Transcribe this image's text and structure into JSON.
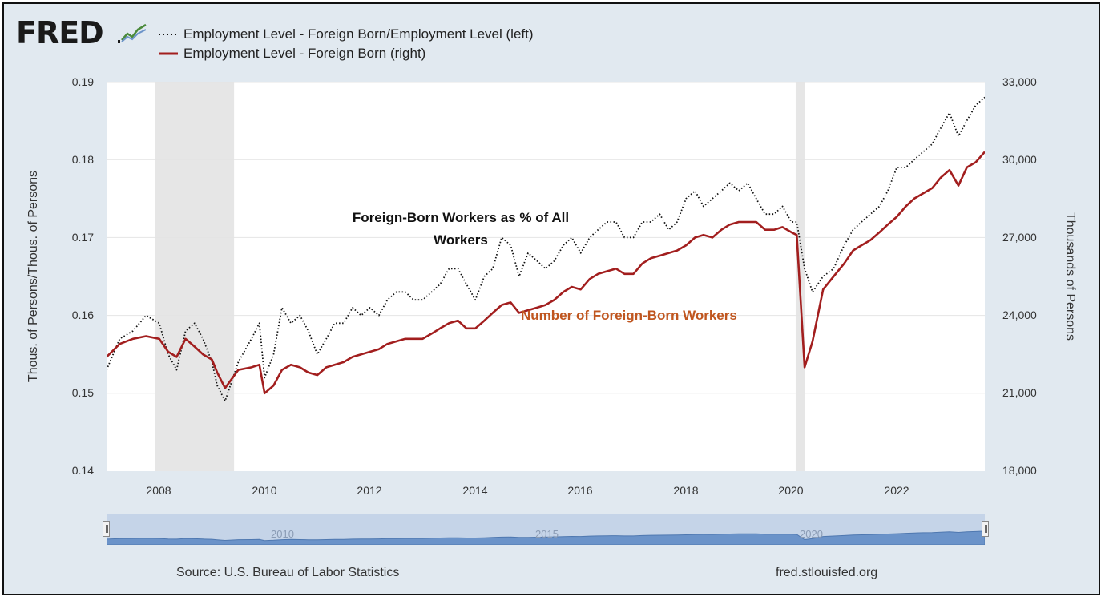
{
  "header": {
    "logo_text": "FRED",
    "legend": [
      {
        "label": "Employment Level - Foreign Born/Employment Level (left)",
        "style": "dotted",
        "color": "#111111"
      },
      {
        "label": "Employment Level - Foreign Born (right)",
        "style": "solid",
        "color": "#a21e1e"
      }
    ]
  },
  "annotations": {
    "ratio_series": "Foreign-Born Workers as % of All Workers",
    "count_series": "Number of Foreign-Born Workers"
  },
  "footer": {
    "source": "Source: U.S. Bureau of Labor Statistics",
    "site": "fred.stlouisfed.org"
  },
  "navigator": {
    "labels": [
      "2010",
      "2015",
      "2020"
    ]
  },
  "colors": {
    "background": "#e1e9f0",
    "plot_background": "#ffffff",
    "recession_shade": "#e6e6e6",
    "ratio_series": "#111111",
    "count_series": "#a21e1e",
    "count_annotation": "#c0561f",
    "navigator_fill": "#6b93c9"
  },
  "chart_data": {
    "type": "line",
    "xlabel": "",
    "ylabel_left": "Thous. of Persons/Thous. of Persons",
    "ylabel_right": "Thousands of Persons",
    "x_range": [
      2007.0,
      2023.67
    ],
    "ylim_left": [
      0.14,
      0.19
    ],
    "ylim_right": [
      18000,
      33000
    ],
    "x_ticks": [
      2008,
      2010,
      2012,
      2014,
      2016,
      2018,
      2020,
      2022
    ],
    "y_ticks_left": [
      "0.14",
      "0.15",
      "0.16",
      "0.17",
      "0.18",
      "0.19"
    ],
    "y_ticks_right": [
      "18,000",
      "21,000",
      "24,000",
      "27,000",
      "30,000",
      "33,000"
    ],
    "grid": true,
    "recessions": [
      [
        2007.92,
        2009.42
      ],
      [
        2020.08,
        2020.25
      ]
    ],
    "series": [
      {
        "name": "Employment Level - Foreign Born/Employment Level (left)",
        "axis": "left",
        "x": [
          2007.0,
          2007.25,
          2007.5,
          2007.75,
          2008.0,
          2008.17,
          2008.33,
          2008.5,
          2008.67,
          2008.83,
          2009.0,
          2009.1,
          2009.25,
          2009.5,
          2009.75,
          2009.9,
          2010.0,
          2010.17,
          2010.33,
          2010.5,
          2010.67,
          2010.83,
          2011.0,
          2011.17,
          2011.33,
          2011.5,
          2011.67,
          2011.83,
          2012.0,
          2012.17,
          2012.33,
          2012.5,
          2012.67,
          2012.83,
          2013.0,
          2013.17,
          2013.33,
          2013.5,
          2013.67,
          2013.83,
          2014.0,
          2014.17,
          2014.33,
          2014.5,
          2014.67,
          2014.83,
          2015.0,
          2015.17,
          2015.33,
          2015.5,
          2015.67,
          2015.83,
          2016.0,
          2016.17,
          2016.33,
          2016.5,
          2016.67,
          2016.83,
          2017.0,
          2017.17,
          2017.33,
          2017.5,
          2017.67,
          2017.83,
          2018.0,
          2018.17,
          2018.33,
          2018.5,
          2018.67,
          2018.83,
          2019.0,
          2019.17,
          2019.33,
          2019.5,
          2019.67,
          2019.83,
          2020.0,
          2020.1,
          2020.25,
          2020.4,
          2020.6,
          2020.8,
          2021.0,
          2021.17,
          2021.33,
          2021.5,
          2021.67,
          2021.83,
          2022.0,
          2022.17,
          2022.33,
          2022.5,
          2022.67,
          2022.83,
          2023.0,
          2023.17,
          2023.33,
          2023.5,
          2023.67
        ],
        "values": [
          0.153,
          0.157,
          0.158,
          0.16,
          0.159,
          0.155,
          0.153,
          0.158,
          0.159,
          0.157,
          0.154,
          0.151,
          0.149,
          0.154,
          0.157,
          0.159,
          0.152,
          0.155,
          0.161,
          0.159,
          0.16,
          0.158,
          0.155,
          0.157,
          0.159,
          0.159,
          0.161,
          0.16,
          0.161,
          0.16,
          0.162,
          0.163,
          0.163,
          0.162,
          0.162,
          0.163,
          0.164,
          0.166,
          0.166,
          0.164,
          0.162,
          0.165,
          0.166,
          0.17,
          0.169,
          0.165,
          0.168,
          0.167,
          0.166,
          0.167,
          0.169,
          0.17,
          0.168,
          0.17,
          0.171,
          0.172,
          0.172,
          0.17,
          0.17,
          0.172,
          0.172,
          0.173,
          0.171,
          0.172,
          0.175,
          0.176,
          0.174,
          0.175,
          0.176,
          0.177,
          0.176,
          0.177,
          0.175,
          0.173,
          0.173,
          0.174,
          0.172,
          0.172,
          0.166,
          0.163,
          0.165,
          0.166,
          0.169,
          0.171,
          0.172,
          0.173,
          0.174,
          0.176,
          0.179,
          0.179,
          0.18,
          0.181,
          0.182,
          0.184,
          0.186,
          0.183,
          0.185,
          0.187,
          0.188
        ]
      },
      {
        "name": "Employment Level - Foreign Born (right)",
        "axis": "right",
        "x": [
          2007.0,
          2007.25,
          2007.5,
          2007.75,
          2008.0,
          2008.17,
          2008.33,
          2008.5,
          2008.67,
          2008.83,
          2009.0,
          2009.1,
          2009.25,
          2009.5,
          2009.75,
          2009.9,
          2010.0,
          2010.17,
          2010.33,
          2010.5,
          2010.67,
          2010.83,
          2011.0,
          2011.17,
          2011.33,
          2011.5,
          2011.67,
          2011.83,
          2012.0,
          2012.17,
          2012.33,
          2012.5,
          2012.67,
          2012.83,
          2013.0,
          2013.17,
          2013.33,
          2013.5,
          2013.67,
          2013.83,
          2014.0,
          2014.17,
          2014.33,
          2014.5,
          2014.67,
          2014.83,
          2015.0,
          2015.17,
          2015.33,
          2015.5,
          2015.67,
          2015.83,
          2016.0,
          2016.17,
          2016.33,
          2016.5,
          2016.67,
          2016.83,
          2017.0,
          2017.17,
          2017.33,
          2017.5,
          2017.67,
          2017.83,
          2018.0,
          2018.17,
          2018.33,
          2018.5,
          2018.67,
          2018.83,
          2019.0,
          2019.17,
          2019.33,
          2019.5,
          2019.67,
          2019.83,
          2020.0,
          2020.1,
          2020.25,
          2020.4,
          2020.6,
          2020.8,
          2021.0,
          2021.17,
          2021.33,
          2021.5,
          2021.67,
          2021.83,
          2022.0,
          2022.17,
          2022.33,
          2022.5,
          2022.67,
          2022.83,
          2023.0,
          2023.17,
          2023.33,
          2023.5,
          2023.67
        ],
        "values": [
          22400,
          22900,
          23100,
          23200,
          23100,
          22600,
          22400,
          23100,
          22800,
          22500,
          22300,
          21800,
          21200,
          21900,
          22000,
          22100,
          21000,
          21300,
          21900,
          22100,
          22000,
          21800,
          21700,
          22000,
          22100,
          22200,
          22400,
          22500,
          22600,
          22700,
          22900,
          23000,
          23100,
          23100,
          23100,
          23300,
          23500,
          23700,
          23800,
          23500,
          23500,
          23800,
          24100,
          24400,
          24500,
          24100,
          24200,
          24300,
          24400,
          24600,
          24900,
          25100,
          25000,
          25400,
          25600,
          25700,
          25800,
          25600,
          25600,
          26000,
          26200,
          26300,
          26400,
          26500,
          26700,
          27000,
          27100,
          27000,
          27300,
          27500,
          27600,
          27600,
          27600,
          27300,
          27300,
          27400,
          27200,
          27100,
          22000,
          23000,
          25000,
          25500,
          26000,
          26500,
          26700,
          26900,
          27200,
          27500,
          27800,
          28200,
          28500,
          28700,
          28900,
          29300,
          29600,
          29000,
          29700,
          29900,
          30300
        ]
      }
    ]
  }
}
